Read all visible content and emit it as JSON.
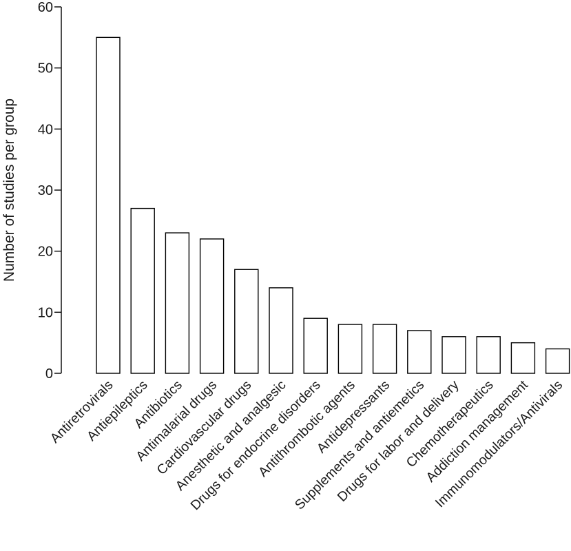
{
  "chart_data": {
    "type": "bar",
    "title": "",
    "xlabel": "",
    "ylabel": "Number of studies per group",
    "ylim": [
      0,
      60
    ],
    "yticks": [
      0,
      10,
      20,
      30,
      40,
      50,
      60
    ],
    "grid": false,
    "categories": [
      "Antiretrovirals",
      "Antiepileptics",
      "Antibiotics",
      "Antimalarial drugs",
      "Cardiovascular drugs",
      "Anesthetic and analgesic",
      "Drugs for endocrine disorders",
      "Antithrombotic agents",
      "Antidepressants",
      "Supplements and antiemetics",
      "Drugs for labor and delivery",
      "Chemotherapeutics",
      "Addiction management",
      "Immunomodulators/Antivirals"
    ],
    "values": [
      55,
      27,
      23,
      22,
      17,
      14,
      9,
      8,
      8,
      7,
      6,
      6,
      5,
      4
    ],
    "colors": {
      "bar_fill": "#ffffff",
      "bar_stroke": "#000000",
      "text": "#1a1a1a"
    }
  }
}
